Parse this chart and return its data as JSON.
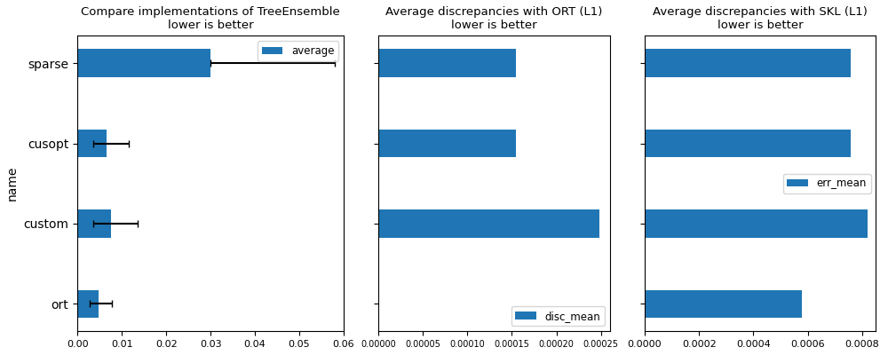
{
  "categories": [
    "sparse",
    "cusopt",
    "custom",
    "ort"
  ],
  "panel1": {
    "title": "Compare implementations of TreeEnsemble\nlower is better",
    "ylabel": "name",
    "values": [
      0.03,
      0.0065,
      0.0075,
      0.0048
    ],
    "xerr_low": [
      0.0,
      0.003,
      0.004,
      0.002
    ],
    "xerr_high": [
      0.028,
      0.005,
      0.006,
      0.003
    ],
    "legend_label": "average",
    "xlim": [
      0.0,
      0.06
    ]
  },
  "panel2": {
    "title": "Average discrepancies with ORT (L1)\nlower is better",
    "ylabel": "",
    "values": [
      0.000155,
      0.000155,
      0.000248,
      0.0
    ],
    "legend_label": "disc_mean",
    "xlim": [
      0.0,
      0.00026
    ]
  },
  "panel3": {
    "title": "Average discrepancies with SKL (L1)\nlower is better",
    "ylabel": "",
    "values": [
      0.000758,
      0.000758,
      0.000818,
      0.000578
    ],
    "legend_label": "err_mean",
    "xlim": [
      0.0,
      0.00085
    ]
  },
  "bar_color": "#2076b4",
  "bar_height": 0.35,
  "figsize": [
    10,
    4
  ],
  "dpi": 100,
  "title_fontsize": 9.5
}
